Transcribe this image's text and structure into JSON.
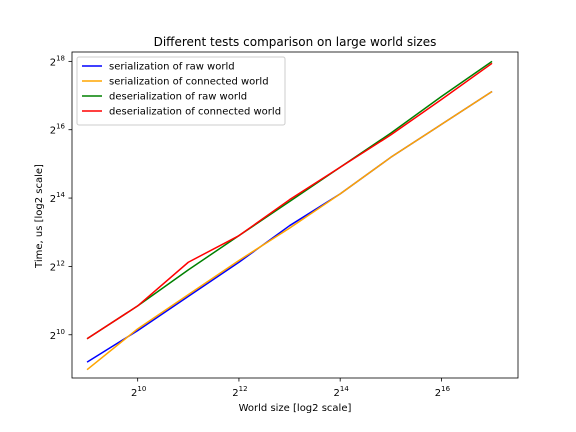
{
  "chart_data": {
    "type": "line",
    "title": "Different tests comparison on large world sizes",
    "xlabel": "World size    [log2 scale]",
    "ylabel": "Time, us    [log2 scale]",
    "xscale": "log2",
    "yscale": "log2",
    "xlim": [
      416.6,
      186978
    ],
    "ylim": [
      426,
      317000
    ],
    "x_ticks": [
      {
        "exp": "10",
        "value": 1024
      },
      {
        "exp": "12",
        "value": 4096
      },
      {
        "exp": "14",
        "value": 16384
      },
      {
        "exp": "16",
        "value": 65536
      }
    ],
    "y_ticks": [
      {
        "exp": "10",
        "value": 1024
      },
      {
        "exp": "12",
        "value": 4096
      },
      {
        "exp": "14",
        "value": 16384
      },
      {
        "exp": "16",
        "value": 65536
      },
      {
        "exp": "18",
        "value": 262144
      }
    ],
    "tick_base": "2",
    "x": [
      512,
      1024,
      2048,
      4096,
      8192,
      16384,
      32768,
      65536,
      131072
    ],
    "series": [
      {
        "name": "serialization of raw world",
        "color": "#0000ff",
        "values": [
          588,
          1114,
          2228,
          4457,
          9357,
          17829,
          37452,
          72988,
          142240
        ]
      },
      {
        "name": "serialization of connected world",
        "color": "#ffa500",
        "values": [
          504,
          1155,
          2311,
          4622,
          8914,
          17829,
          37452,
          72988,
          142240
        ]
      },
      {
        "name": "deserialization of raw world",
        "color": "#008000",
        "values": [
          945,
          1838,
          3822,
          7644,
          15288,
          30578,
          61156,
          128473,
          262144
        ]
      },
      {
        "name": "deserialization of connected world",
        "color": "#ff0000",
        "values": [
          945,
          1838,
          4457,
          7644,
          15855,
          30578,
          59000,
          121000,
          252000
        ]
      }
    ],
    "legend_position": "top-left",
    "grid": false
  }
}
